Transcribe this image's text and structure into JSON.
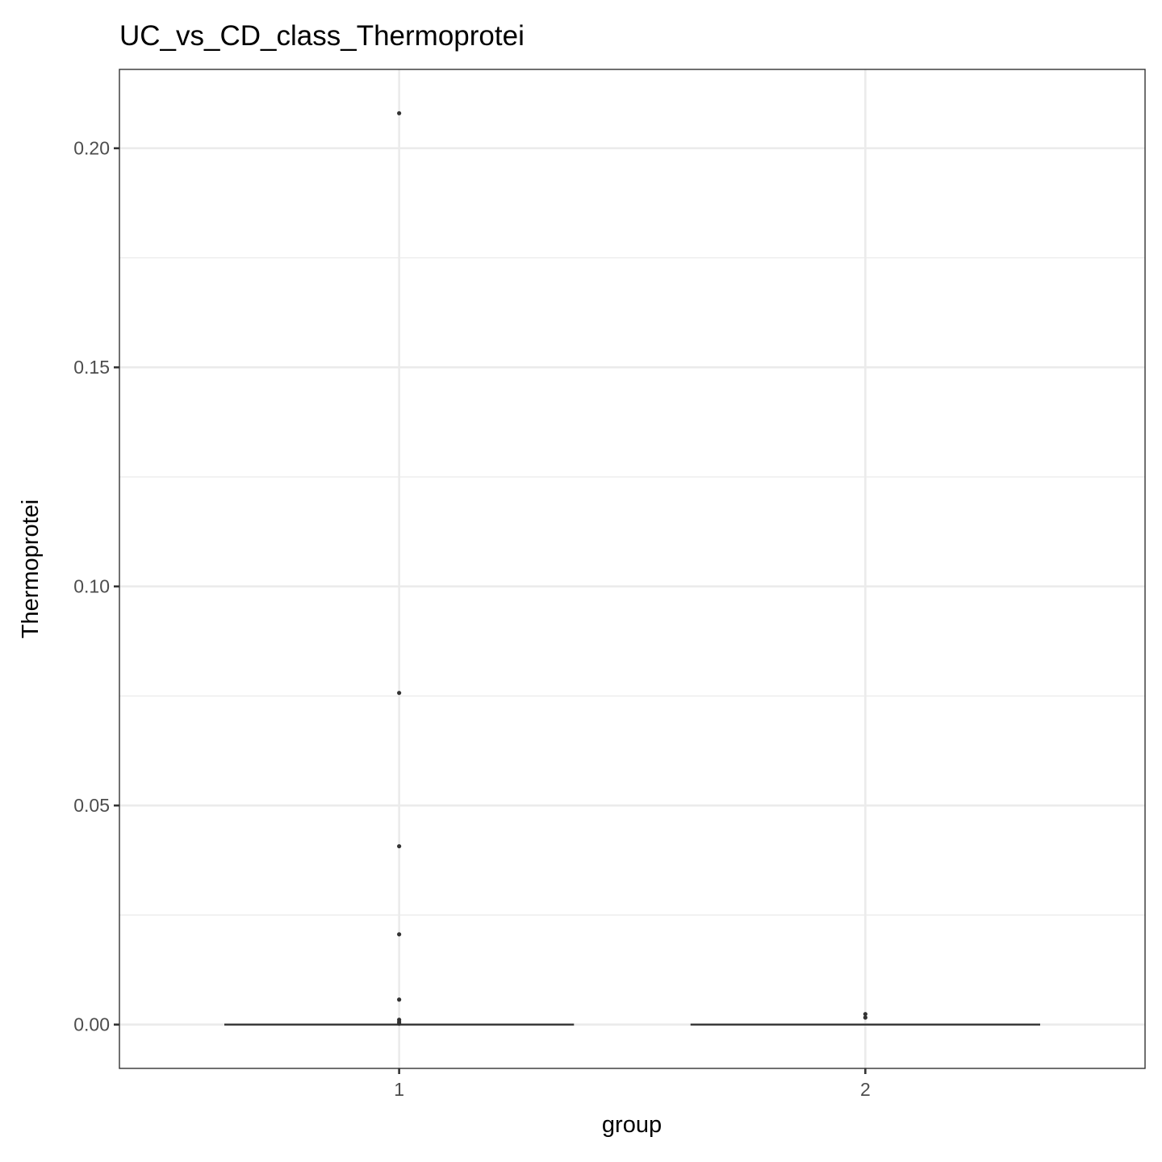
{
  "chart_data": {
    "type": "box",
    "title": "UC_vs_CD_class_Thermoprotei",
    "xlabel": "group",
    "ylabel": "Thermoprotei",
    "categories": [
      "1",
      "2"
    ],
    "ylim": [
      -0.01,
      0.218
    ],
    "y_ticks": [
      0.0,
      0.05,
      0.1,
      0.15,
      0.2
    ],
    "y_tick_labels": [
      "0.00",
      "0.05",
      "0.10",
      "0.15",
      "0.20"
    ],
    "y_minor_ticks": [
      0.025,
      0.075,
      0.125,
      0.175
    ],
    "grid": true,
    "legend": "none",
    "boxes": [
      {
        "category": "1",
        "min": 0,
        "q1": 0,
        "median": 0,
        "q3": 0,
        "max": 0,
        "outliers": [
          0.208,
          0.0757,
          0.0407,
          0.0206,
          0.0057,
          0.0011,
          0.0006,
          0.0002
        ]
      },
      {
        "category": "2",
        "min": 0,
        "q1": 0,
        "median": 0,
        "q3": 0,
        "max": 0,
        "outliers": [
          0.0024,
          0.0016
        ]
      }
    ]
  }
}
